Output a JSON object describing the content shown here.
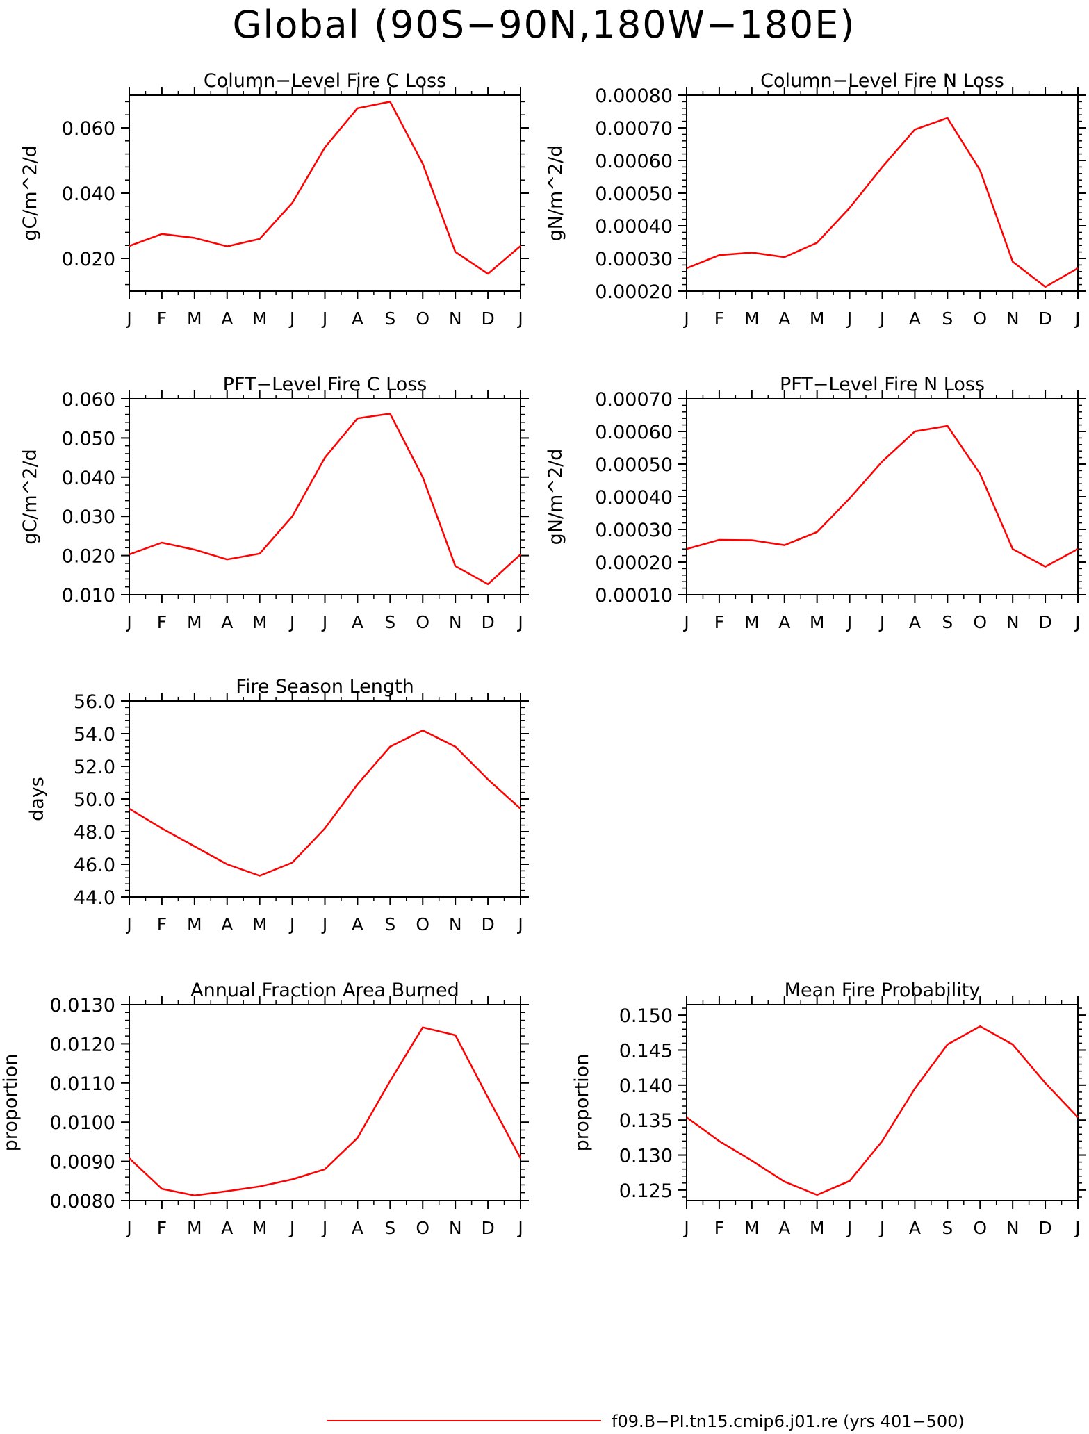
{
  "page": {
    "title": "Global (90S−90N,180W−180E)"
  },
  "legend": {
    "label": "f09.B−PI.tn15.cmip6.j01.re (yrs 401−500)",
    "color": "#ff0000"
  },
  "months": [
    "J",
    "F",
    "M",
    "A",
    "M",
    "J",
    "J",
    "A",
    "S",
    "O",
    "N",
    "D",
    "J"
  ],
  "chart_data": [
    {
      "type": "line",
      "title": "Column−Level Fire C Loss",
      "ylabel": "gC/m^2/d",
      "ylim": [
        0.01,
        0.07
      ],
      "yticks": [
        0.02,
        0.04,
        0.06
      ],
      "ytick_labels": [
        "0.020",
        "0.040",
        "0.060"
      ],
      "series": [
        {
          "values": [
            0.0238,
            0.0275,
            0.0263,
            0.0237,
            0.026,
            0.037,
            0.054,
            0.066,
            0.068,
            0.049,
            0.022,
            0.0153,
            0.0238
          ]
        }
      ]
    },
    {
      "type": "line",
      "title": "Column−Level Fire N Loss",
      "ylabel": "gN/m^2/d",
      "ylim": [
        0.0002,
        0.0008
      ],
      "yticks": [
        0.0002,
        0.0003,
        0.0004,
        0.0005,
        0.0006,
        0.0007,
        0.0008
      ],
      "ytick_labels": [
        "0.00020",
        "0.00030",
        "0.00040",
        "0.00050",
        "0.00060",
        "0.00070",
        "0.00080"
      ],
      "series": [
        {
          "values": [
            0.00027,
            0.00031,
            0.000318,
            0.000304,
            0.000348,
            0.000455,
            0.00058,
            0.000695,
            0.00073,
            0.00057,
            0.00029,
            0.000213,
            0.00027
          ]
        }
      ]
    },
    {
      "type": "line",
      "title": "PFT−Level Fire C Loss",
      "ylabel": "gC/m^2/d",
      "ylim": [
        0.01,
        0.06
      ],
      "yticks": [
        0.01,
        0.02,
        0.03,
        0.04,
        0.05,
        0.06
      ],
      "ytick_labels": [
        "0.010",
        "0.020",
        "0.030",
        "0.040",
        "0.050",
        "0.060"
      ],
      "series": [
        {
          "values": [
            0.0203,
            0.0233,
            0.0215,
            0.019,
            0.0205,
            0.03,
            0.045,
            0.055,
            0.0562,
            0.04,
            0.0173,
            0.0127,
            0.0203
          ]
        }
      ]
    },
    {
      "type": "line",
      "title": "PFT−Level Fire N Loss",
      "ylabel": "gN/m^2/d",
      "ylim": [
        0.0001,
        0.0007
      ],
      "yticks": [
        0.0001,
        0.0002,
        0.0003,
        0.0004,
        0.0005,
        0.0006,
        0.0007
      ],
      "ytick_labels": [
        "0.00010",
        "0.00020",
        "0.00030",
        "0.00040",
        "0.00050",
        "0.00060",
        "0.00070"
      ],
      "series": [
        {
          "values": [
            0.00024,
            0.000268,
            0.000267,
            0.000252,
            0.000292,
            0.000395,
            0.000508,
            0.0006,
            0.000617,
            0.00047,
            0.00024,
            0.000186,
            0.00024
          ]
        }
      ]
    },
    {
      "type": "line",
      "title": "Fire Season Length",
      "ylabel": "days",
      "ylim": [
        44.0,
        56.0
      ],
      "yticks": [
        44,
        46,
        48,
        50,
        52,
        54,
        56
      ],
      "ytick_labels": [
        "44.0",
        "46.0",
        "48.0",
        "50.0",
        "52.0",
        "54.0",
        "56.0"
      ],
      "series": [
        {
          "values": [
            49.4,
            48.2,
            47.1,
            46.0,
            45.3,
            46.1,
            48.2,
            50.9,
            53.2,
            54.2,
            53.2,
            51.2,
            49.4
          ]
        }
      ]
    },
    {
      "type": "line",
      "title": "Annual Fraction Area Burned",
      "ylabel": "proportion",
      "ylim": [
        0.008,
        0.013
      ],
      "yticks": [
        0.008,
        0.009,
        0.01,
        0.011,
        0.012,
        0.013
      ],
      "ytick_labels": [
        "0.0080",
        "0.0090",
        "0.0100",
        "0.0110",
        "0.0120",
        "0.0130"
      ],
      "series": [
        {
          "values": [
            0.00908,
            0.0083,
            0.00813,
            0.00824,
            0.00836,
            0.00854,
            0.0088,
            0.0096,
            0.01105,
            0.01242,
            0.01222,
            0.01063,
            0.00908
          ]
        }
      ]
    },
    {
      "type": "line",
      "title": "Mean Fire Probability",
      "ylabel": "proportion",
      "ylim": [
        0.1235,
        0.1515
      ],
      "yticks": [
        0.125,
        0.13,
        0.135,
        0.14,
        0.145,
        0.15
      ],
      "ytick_labels": [
        "0.125",
        "0.130",
        "0.135",
        "0.140",
        "0.145",
        "0.150"
      ],
      "series": [
        {
          "values": [
            0.1354,
            0.132,
            0.1292,
            0.1262,
            0.1243,
            0.1263,
            0.132,
            0.1395,
            0.1458,
            0.1484,
            0.1458,
            0.1403,
            0.1354
          ]
        }
      ]
    }
  ]
}
